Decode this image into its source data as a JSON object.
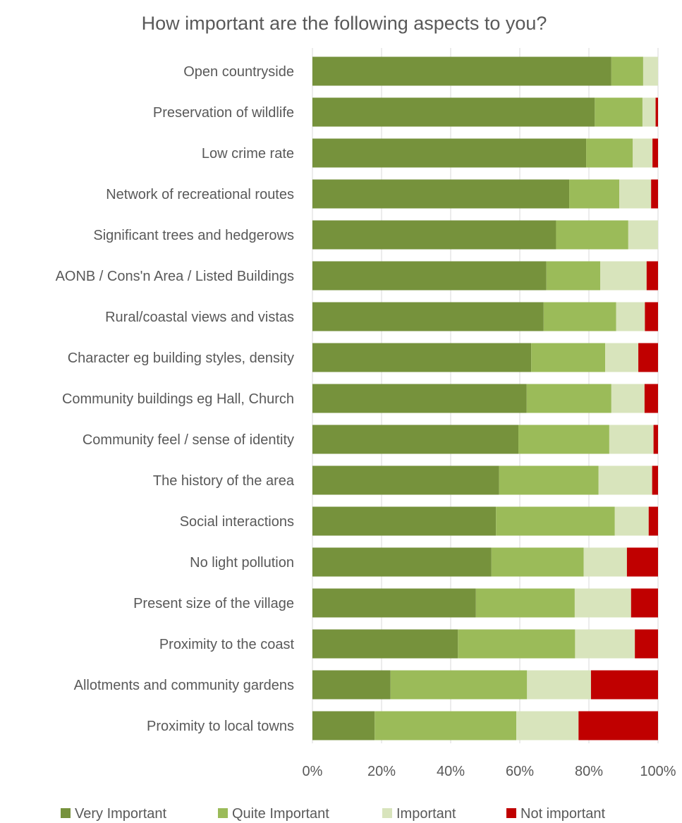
{
  "chart_data": {
    "type": "bar",
    "orientation": "horizontal",
    "stacked": "100%",
    "title": "How important are the following aspects to you?",
    "categories": [
      "Open countryside",
      "Preservation of wildlife",
      "Low crime rate",
      "Network of recreational routes",
      "Significant trees and hedgerows",
      "AONB / Cons'n Area / Listed Buildings",
      "Rural/coastal views and vistas",
      "Character eg building styles, density",
      "Community buildings eg Hall, Church",
      "Community feel / sense of identity",
      "The history of the area",
      "Social interactions",
      "No light pollution",
      "Present size of the village",
      "Proximity to the coast",
      "Allotments and community gardens",
      "Proximity to local towns"
    ],
    "series": [
      {
        "name": "Very Important",
        "color": "#76923C",
        "values": [
          86.5,
          81.7,
          79.2,
          74.3,
          70.5,
          67.7,
          66.9,
          63.3,
          62.0,
          59.6,
          54.0,
          53.1,
          51.8,
          47.3,
          42.1,
          22.6,
          18.0
        ]
      },
      {
        "name": "Quite Important",
        "color": "#9BBB59",
        "values": [
          9.2,
          13.8,
          13.5,
          14.5,
          20.9,
          15.6,
          21.0,
          21.4,
          24.5,
          26.3,
          28.8,
          34.4,
          26.7,
          28.6,
          33.9,
          39.5,
          41.0
        ]
      },
      {
        "name": "Important",
        "color": "#D8E4BC",
        "values": [
          4.3,
          3.8,
          5.7,
          9.2,
          8.6,
          13.4,
          8.3,
          9.6,
          9.6,
          12.8,
          15.5,
          9.8,
          12.5,
          16.3,
          17.3,
          18.5,
          18.0
        ]
      },
      {
        "name": "Not important",
        "color": "#C00000",
        "values": [
          0.0,
          0.7,
          1.6,
          2.0,
          0.0,
          3.3,
          3.8,
          5.7,
          3.9,
          1.3,
          1.7,
          2.7,
          9.0,
          7.8,
          6.7,
          19.4,
          23.0
        ]
      }
    ],
    "xaxis": {
      "ticks": [
        "0%",
        "20%",
        "40%",
        "60%",
        "80%",
        "100%"
      ],
      "range": [
        0,
        100
      ]
    },
    "grid": true,
    "legend_position": "bottom"
  }
}
